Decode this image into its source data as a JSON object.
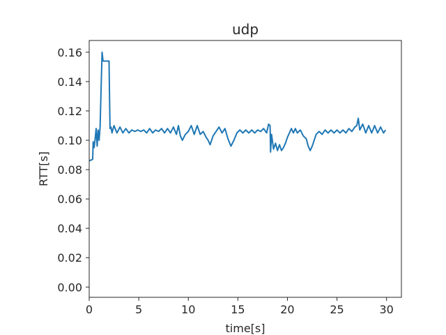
{
  "chart_data": {
    "type": "line",
    "title": "udp",
    "xlabel": "time[s]",
    "ylabel": "RTT[s]",
    "xlim": [
      0,
      31.5
    ],
    "ylim": [
      -0.007,
      0.168
    ],
    "xticks": [
      0,
      5,
      10,
      15,
      20,
      25,
      30
    ],
    "yticks": [
      0.0,
      0.02,
      0.04,
      0.06,
      0.08,
      0.1,
      0.12,
      0.14,
      0.16
    ],
    "xtick_labels": [
      "0",
      "5",
      "10",
      "15",
      "20",
      "25",
      "30"
    ],
    "ytick_labels": [
      "0.00",
      "0.02",
      "0.04",
      "0.06",
      "0.08",
      "0.10",
      "0.12",
      "0.14",
      "0.16"
    ],
    "grid": false,
    "line_color": "#1f77b4",
    "series": [
      {
        "x": [
          0.0,
          0.35,
          0.4,
          0.5,
          0.6,
          0.7,
          0.8,
          0.9,
          1.0,
          1.1,
          1.2,
          1.3,
          1.4,
          1.5,
          1.6,
          1.7,
          1.8,
          2.0,
          2.1,
          2.2,
          2.3,
          2.5,
          2.8,
          3.1,
          3.4,
          3.7,
          4.0,
          4.3,
          4.6,
          4.9,
          5.2,
          5.5,
          5.8,
          6.1,
          6.4,
          6.7,
          7.0,
          7.3,
          7.6,
          7.9,
          8.2,
          8.5,
          8.8,
          9.0,
          9.2,
          9.4,
          9.7,
          10.0,
          10.3,
          10.6,
          10.9,
          11.2,
          11.5,
          11.8,
          12.0,
          12.2,
          12.5,
          12.8,
          13.1,
          13.4,
          13.7,
          14.0,
          14.3,
          14.6,
          14.9,
          15.2,
          15.5,
          15.8,
          16.1,
          16.4,
          16.7,
          17.0,
          17.3,
          17.6,
          17.9,
          18.1,
          18.25,
          18.3,
          18.4,
          18.6,
          18.8,
          19.0,
          19.2,
          19.4,
          19.6,
          19.8,
          20.0,
          20.2,
          20.4,
          20.6,
          20.8,
          21.0,
          21.3,
          21.6,
          21.9,
          22.1,
          22.3,
          22.5,
          22.7,
          22.9,
          23.2,
          23.5,
          23.8,
          24.1,
          24.4,
          24.7,
          25.0,
          25.3,
          25.6,
          25.9,
          26.2,
          26.5,
          26.8,
          27.0,
          27.15,
          27.3,
          27.6,
          27.9,
          28.2,
          28.5,
          28.8,
          29.1,
          29.4,
          29.7,
          29.9
        ],
        "y": [
          0.086,
          0.087,
          0.099,
          0.095,
          0.101,
          0.108,
          0.096,
          0.107,
          0.1,
          0.109,
          0.135,
          0.16,
          0.154,
          0.154,
          0.154,
          0.154,
          0.154,
          0.154,
          0.108,
          0.109,
          0.105,
          0.11,
          0.105,
          0.109,
          0.105,
          0.108,
          0.105,
          0.107,
          0.106,
          0.107,
          0.106,
          0.107,
          0.105,
          0.108,
          0.105,
          0.107,
          0.106,
          0.108,
          0.105,
          0.108,
          0.105,
          0.109,
          0.104,
          0.11,
          0.103,
          0.1,
          0.104,
          0.106,
          0.11,
          0.104,
          0.11,
          0.104,
          0.106,
          0.102,
          0.1,
          0.097,
          0.103,
          0.106,
          0.109,
          0.105,
          0.108,
          0.101,
          0.096,
          0.1,
          0.105,
          0.107,
          0.105,
          0.107,
          0.105,
          0.107,
          0.105,
          0.107,
          0.106,
          0.108,
          0.105,
          0.111,
          0.11,
          0.092,
          0.104,
          0.094,
          0.098,
          0.093,
          0.097,
          0.093,
          0.095,
          0.098,
          0.102,
          0.105,
          0.108,
          0.105,
          0.108,
          0.105,
          0.107,
          0.103,
          0.101,
          0.096,
          0.093,
          0.096,
          0.1,
          0.104,
          0.106,
          0.104,
          0.107,
          0.105,
          0.107,
          0.105,
          0.107,
          0.105,
          0.107,
          0.105,
          0.108,
          0.106,
          0.109,
          0.11,
          0.115,
          0.107,
          0.111,
          0.105,
          0.11,
          0.105,
          0.11,
          0.105,
          0.109,
          0.105,
          0.107
        ]
      }
    ]
  }
}
